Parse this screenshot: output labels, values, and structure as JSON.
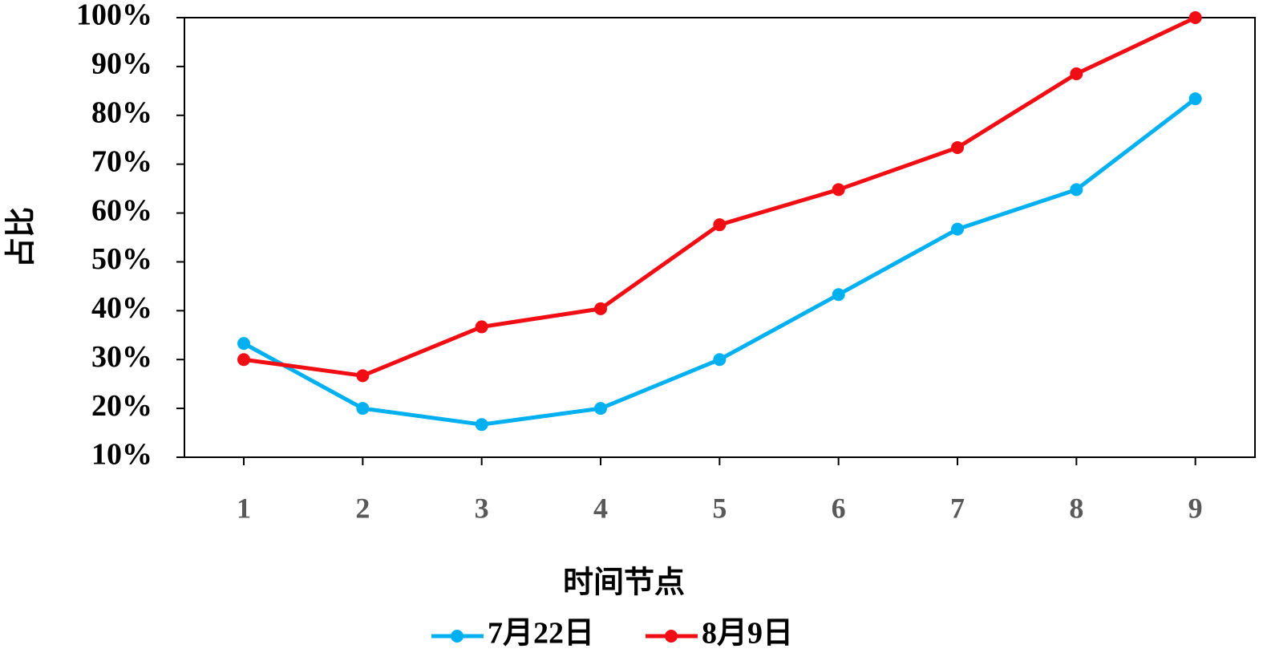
{
  "chart_data": {
    "type": "line",
    "x_label": "时间节点",
    "y_label": "占比",
    "categories": [
      "1",
      "2",
      "3",
      "4",
      "5",
      "6",
      "7",
      "8",
      "9"
    ],
    "series": [
      {
        "name": "7月22日",
        "color": "#00b0f0",
        "values": [
          33.3,
          20,
          16.7,
          20,
          30,
          43.3,
          56.7,
          64.8,
          83.4
        ]
      },
      {
        "name": "8月9日",
        "color": "#f00d13",
        "values": [
          30,
          26.7,
          36.7,
          40.4,
          57.6,
          64.8,
          73.4,
          88.5,
          100
        ]
      }
    ],
    "ylim": [
      10,
      100
    ],
    "yticks": [
      {
        "value": 10,
        "label": "10%"
      },
      {
        "value": 20,
        "label": "20%"
      },
      {
        "value": 30,
        "label": "30%"
      },
      {
        "value": 40,
        "label": "40%"
      },
      {
        "value": 50,
        "label": "50%"
      },
      {
        "value": 60,
        "label": "60%"
      },
      {
        "value": 70,
        "label": "70%"
      },
      {
        "value": 80,
        "label": "80%"
      },
      {
        "value": 90,
        "label": "90%"
      },
      {
        "value": 100,
        "label": "100%"
      }
    ],
    "grid": false,
    "legend": "bottom"
  }
}
